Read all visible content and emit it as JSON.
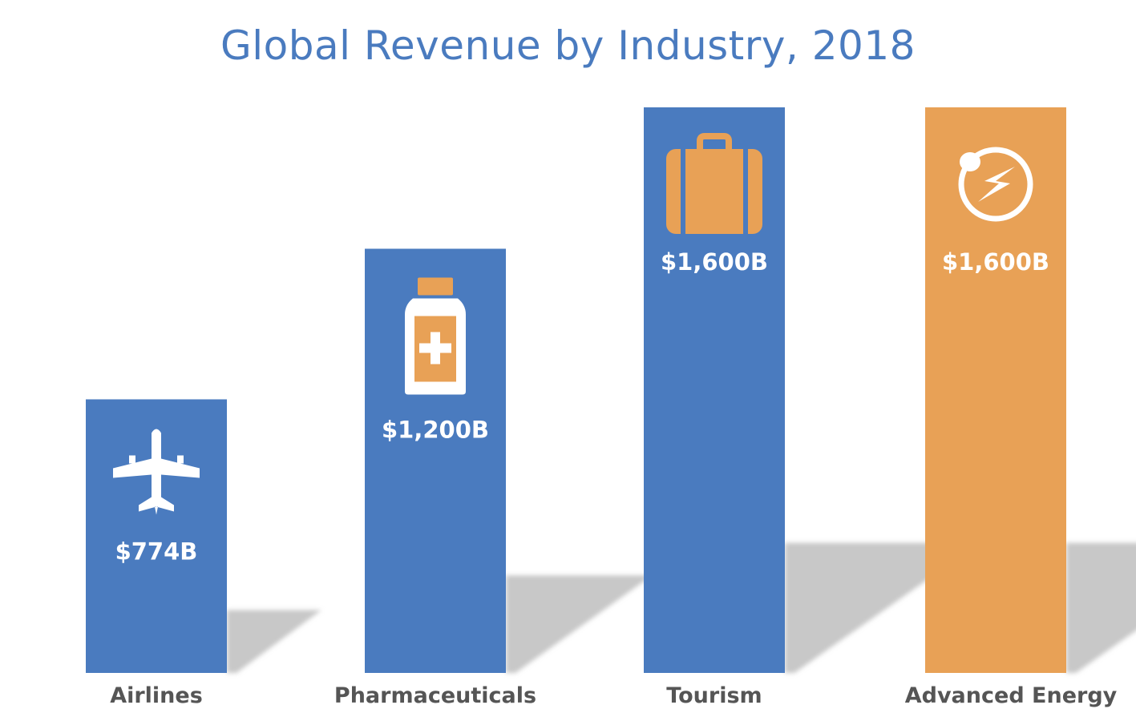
{
  "chart_data": {
    "type": "bar",
    "title": "Global Revenue by Industry, 2018",
    "xlabel": "",
    "ylabel": "",
    "unit": "$B",
    "categories": [
      "Airlines",
      "Pharmaceuticals",
      "Tourism",
      "Advanced Energy"
    ],
    "values": [
      774,
      1200,
      1600,
      1600
    ],
    "data_labels": [
      "$774B",
      "$1,200B",
      "$1,600B",
      "$1,600B"
    ],
    "icons": [
      "airplane-icon",
      "medicine-bottle-icon",
      "suitcase-icon",
      "energy-icon"
    ],
    "colors": [
      "#4a7bbf",
      "#4a7bbf",
      "#4a7bbf",
      "#e8a156"
    ],
    "icon_accent": "#e8a156",
    "ylim": [
      0,
      1600
    ],
    "grid": false,
    "legend": "none"
  }
}
